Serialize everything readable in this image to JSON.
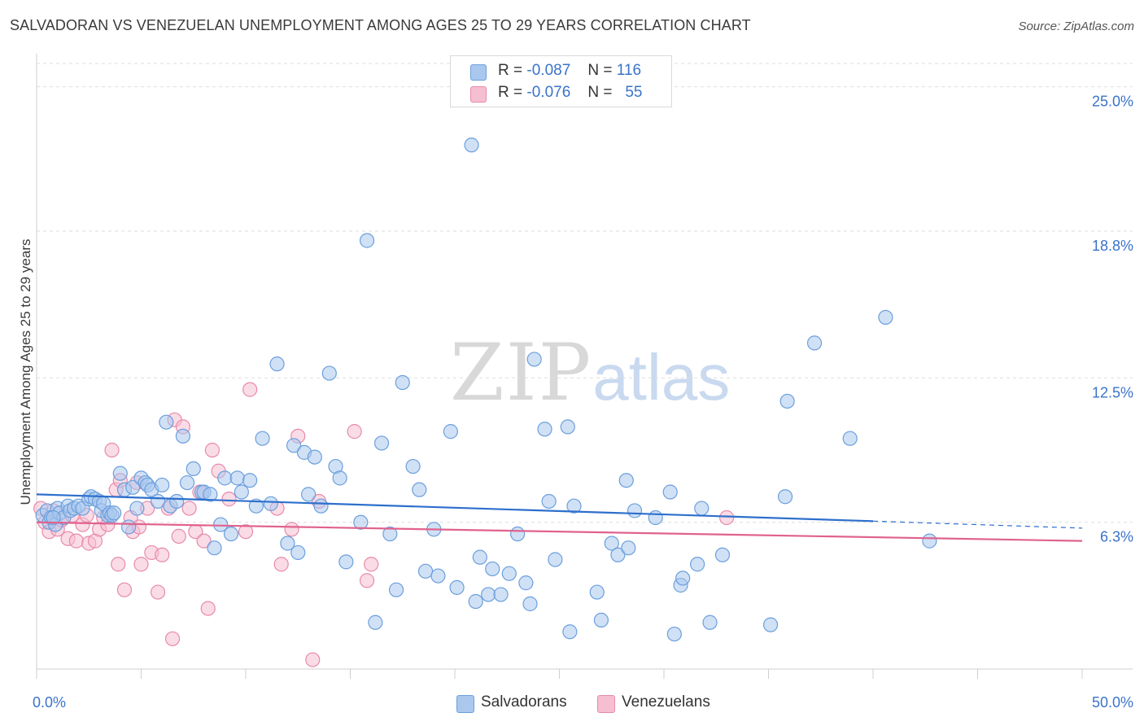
{
  "title": "SALVADORAN VS VENEZUELAN UNEMPLOYMENT AMONG AGES 25 TO 29 YEARS CORRELATION CHART",
  "source": "Source: ZipAtlas.com",
  "watermark": {
    "zip": "ZIP",
    "atlas": "atlas"
  },
  "legend_top": [
    {
      "r_label": "R =",
      "r": "-0.087",
      "n_label": "N =",
      "n": "116"
    },
    {
      "r_label": "R =",
      "r": "-0.076",
      "n_label": "N =",
      "n": "55"
    }
  ],
  "legend_bottom": [
    "Salvadorans",
    "Venezuelans"
  ],
  "colors": {
    "blue_fill": "#aac8ee",
    "blue_stroke": "#6b9fdc",
    "blue_line": "#2d6fcc",
    "pink_fill": "#f6bfd1",
    "pink_stroke": "#e88aaa",
    "pink_line": "#e0628e",
    "tick_label": "#3a73c9",
    "grid": "#dedede"
  },
  "chart_data": {
    "type": "scatter",
    "title": "SALVADORAN VS VENEZUELAN UNEMPLOYMENT AMONG AGES 25 TO 29 YEARS CORRELATION CHART",
    "xlabel": "",
    "ylabel": "Unemployment Among Ages 25 to 29 years",
    "xlim": [
      0,
      50
    ],
    "ylim": [
      0,
      26
    ],
    "x_tick_labels": [
      {
        "value": 0,
        "label": "0.0%"
      },
      {
        "value": 50,
        "label": "50.0%"
      }
    ],
    "y_ticks": [
      {
        "value": 6.3,
        "label": "6.3%"
      },
      {
        "value": 12.5,
        "label": "12.5%"
      },
      {
        "value": 18.8,
        "label": "18.8%"
      },
      {
        "value": 25.0,
        "label": "25.0%"
      }
    ],
    "series": [
      {
        "name": "Salvadorans",
        "r": -0.087,
        "n": 116,
        "trend": {
          "x0": 0,
          "y0": 7.5,
          "x1": 40,
          "y1": 6.35,
          "dashed_to_x": 50,
          "dashed_to_y": 6.05
        },
        "points": [
          [
            0.3,
            6.6
          ],
          [
            0.5,
            6.8
          ],
          [
            0.6,
            6.3
          ],
          [
            0.7,
            6.5
          ],
          [
            0.9,
            6.2
          ],
          [
            1.0,
            6.9
          ],
          [
            1.1,
            6.7
          ],
          [
            1.3,
            6.5
          ],
          [
            1.5,
            7.0
          ],
          [
            1.6,
            6.8
          ],
          [
            1.8,
            6.9
          ],
          [
            2.0,
            7.0
          ],
          [
            2.2,
            6.9
          ],
          [
            2.5,
            7.3
          ],
          [
            2.6,
            7.4
          ],
          [
            2.8,
            7.3
          ],
          [
            3.0,
            7.2
          ],
          [
            3.1,
            6.8
          ],
          [
            3.2,
            7.1
          ],
          [
            3.4,
            6.6
          ],
          [
            3.5,
            6.7
          ],
          [
            3.6,
            6.6
          ],
          [
            3.7,
            6.7
          ],
          [
            4.0,
            8.4
          ],
          [
            4.2,
            7.7
          ],
          [
            4.4,
            6.1
          ],
          [
            4.6,
            7.8
          ],
          [
            4.8,
            6.9
          ],
          [
            5.0,
            8.2
          ],
          [
            5.2,
            8.0
          ],
          [
            5.3,
            7.9
          ],
          [
            5.5,
            7.7
          ],
          [
            5.8,
            7.2
          ],
          [
            6.0,
            7.9
          ],
          [
            6.2,
            10.6
          ],
          [
            6.4,
            7.0
          ],
          [
            6.7,
            7.2
          ],
          [
            7.0,
            10.0
          ],
          [
            7.2,
            8.0
          ],
          [
            7.5,
            8.6
          ],
          [
            7.9,
            7.6
          ],
          [
            8.0,
            7.6
          ],
          [
            8.3,
            7.5
          ],
          [
            8.5,
            5.2
          ],
          [
            8.8,
            6.2
          ],
          [
            9.0,
            8.2
          ],
          [
            9.3,
            5.8
          ],
          [
            9.6,
            8.2
          ],
          [
            9.8,
            7.6
          ],
          [
            10.2,
            8.1
          ],
          [
            10.5,
            7.0
          ],
          [
            10.8,
            9.9
          ],
          [
            11.2,
            7.1
          ],
          [
            11.5,
            13.1
          ],
          [
            12.0,
            5.4
          ],
          [
            12.3,
            9.6
          ],
          [
            12.5,
            5.0
          ],
          [
            12.8,
            9.3
          ],
          [
            13.0,
            7.5
          ],
          [
            13.3,
            9.1
          ],
          [
            13.6,
            7.0
          ],
          [
            14.0,
            12.7
          ],
          [
            14.3,
            8.7
          ],
          [
            14.5,
            8.2
          ],
          [
            14.8,
            4.6
          ],
          [
            15.5,
            6.3
          ],
          [
            15.8,
            18.4
          ],
          [
            16.2,
            2.0
          ],
          [
            16.5,
            9.7
          ],
          [
            16.9,
            5.8
          ],
          [
            17.2,
            3.4
          ],
          [
            17.5,
            12.3
          ],
          [
            18.0,
            8.7
          ],
          [
            18.3,
            7.7
          ],
          [
            18.6,
            4.2
          ],
          [
            19.0,
            6.0
          ],
          [
            19.2,
            4.0
          ],
          [
            19.8,
            10.2
          ],
          [
            20.1,
            3.5
          ],
          [
            20.8,
            22.5
          ],
          [
            21.0,
            2.9
          ],
          [
            21.2,
            4.8
          ],
          [
            21.6,
            3.2
          ],
          [
            21.8,
            4.3
          ],
          [
            22.2,
            3.2
          ],
          [
            22.6,
            4.1
          ],
          [
            23.0,
            5.8
          ],
          [
            23.4,
            3.7
          ],
          [
            23.6,
            2.8
          ],
          [
            23.8,
            13.3
          ],
          [
            24.3,
            10.3
          ],
          [
            24.5,
            7.2
          ],
          [
            24.8,
            4.7
          ],
          [
            25.4,
            10.4
          ],
          [
            25.5,
            1.6
          ],
          [
            25.7,
            7.0
          ],
          [
            26.8,
            3.3
          ],
          [
            27.0,
            2.1
          ],
          [
            27.5,
            5.4
          ],
          [
            27.8,
            4.9
          ],
          [
            28.2,
            8.1
          ],
          [
            28.3,
            5.2
          ],
          [
            28.6,
            6.8
          ],
          [
            29.6,
            6.5
          ],
          [
            30.3,
            7.6
          ],
          [
            30.5,
            1.5
          ],
          [
            30.8,
            3.6
          ],
          [
            30.9,
            3.9
          ],
          [
            31.6,
            4.5
          ],
          [
            31.8,
            6.9
          ],
          [
            32.2,
            2.0
          ],
          [
            32.8,
            4.9
          ],
          [
            35.1,
            1.9
          ],
          [
            35.8,
            7.4
          ],
          [
            35.9,
            11.5
          ],
          [
            37.2,
            14.0
          ],
          [
            38.9,
            9.9
          ],
          [
            40.6,
            15.1
          ],
          [
            42.7,
            5.5
          ],
          [
            0.8,
            6.5
          ]
        ]
      },
      {
        "name": "Venezuelans",
        "r": -0.076,
        "n": 55,
        "trend": {
          "x0": 0,
          "y0": 6.3,
          "x1": 50,
          "y1": 5.5
        },
        "points": [
          [
            0.2,
            6.9
          ],
          [
            0.4,
            6.3
          ],
          [
            0.6,
            5.9
          ],
          [
            0.8,
            6.8
          ],
          [
            1.0,
            6.0
          ],
          [
            1.2,
            6.4
          ],
          [
            1.5,
            5.6
          ],
          [
            1.7,
            6.6
          ],
          [
            1.9,
            5.5
          ],
          [
            2.2,
            6.2
          ],
          [
            2.4,
            6.6
          ],
          [
            2.5,
            5.4
          ],
          [
            2.8,
            5.5
          ],
          [
            3.0,
            6.0
          ],
          [
            3.2,
            6.5
          ],
          [
            3.4,
            6.2
          ],
          [
            3.6,
            9.4
          ],
          [
            3.8,
            7.7
          ],
          [
            3.9,
            4.5
          ],
          [
            4.0,
            8.1
          ],
          [
            4.2,
            3.4
          ],
          [
            4.5,
            6.5
          ],
          [
            4.6,
            5.9
          ],
          [
            4.8,
            8.0
          ],
          [
            4.9,
            6.1
          ],
          [
            5.0,
            4.5
          ],
          [
            5.3,
            6.9
          ],
          [
            5.5,
            5.0
          ],
          [
            5.8,
            3.3
          ],
          [
            6.0,
            4.9
          ],
          [
            6.3,
            6.9
          ],
          [
            6.5,
            1.3
          ],
          [
            6.6,
            10.7
          ],
          [
            6.8,
            5.7
          ],
          [
            7.0,
            10.4
          ],
          [
            7.3,
            6.9
          ],
          [
            7.6,
            5.9
          ],
          [
            7.8,
            7.6
          ],
          [
            8.0,
            5.5
          ],
          [
            8.2,
            2.6
          ],
          [
            8.4,
            9.4
          ],
          [
            8.7,
            8.5
          ],
          [
            9.2,
            7.3
          ],
          [
            10.0,
            5.9
          ],
          [
            10.2,
            12.0
          ],
          [
            11.5,
            6.9
          ],
          [
            11.7,
            4.5
          ],
          [
            12.2,
            6.0
          ],
          [
            12.5,
            10.0
          ],
          [
            13.2,
            0.4
          ],
          [
            13.5,
            7.2
          ],
          [
            15.2,
            10.2
          ],
          [
            15.8,
            3.8
          ],
          [
            16.0,
            4.5
          ],
          [
            33.0,
            6.5
          ]
        ]
      }
    ]
  }
}
